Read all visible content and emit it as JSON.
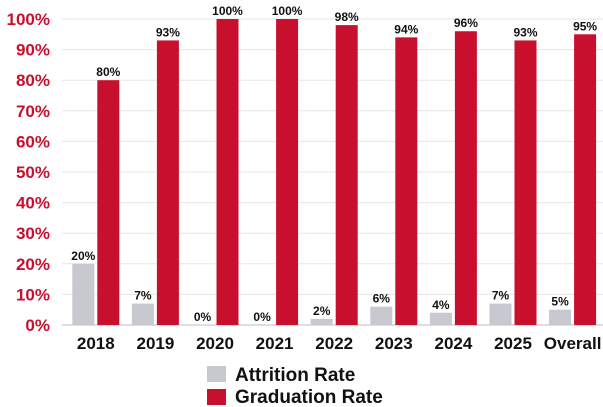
{
  "chart_data": {
    "type": "bar",
    "categories": [
      "2018",
      "2019",
      "2020",
      "2021",
      "2022",
      "2023",
      "2024",
      "2025",
      "Overall"
    ],
    "series": [
      {
        "name": "Attrition Rate",
        "values": [
          20,
          7,
          0,
          0,
          2,
          6,
          4,
          7,
          5
        ],
        "labels": [
          "20%",
          "7%",
          "0%",
          "0%",
          "2%",
          "6%",
          "4%",
          "7%",
          "5%"
        ],
        "color": "#c8c8d0"
      },
      {
        "name": "Graduation Rate",
        "values": [
          80,
          93,
          100,
          100,
          98,
          94,
          96,
          93,
          95
        ],
        "labels": [
          "80%",
          "93%",
          "100%",
          "100%",
          "98%",
          "94%",
          "96%",
          "93%",
          "95%"
        ],
        "color": "#c8102e"
      }
    ],
    "ylim": [
      0,
      100
    ],
    "yticks": [
      "0%",
      "10%",
      "20%",
      "30%",
      "40%",
      "50%",
      "60%",
      "70%",
      "80%",
      "90%",
      "100%"
    ],
    "ytick_color": "#c8102e",
    "grid": true,
    "legend_position": "bottom-center",
    "title": "",
    "xlabel": "",
    "ylabel": ""
  }
}
